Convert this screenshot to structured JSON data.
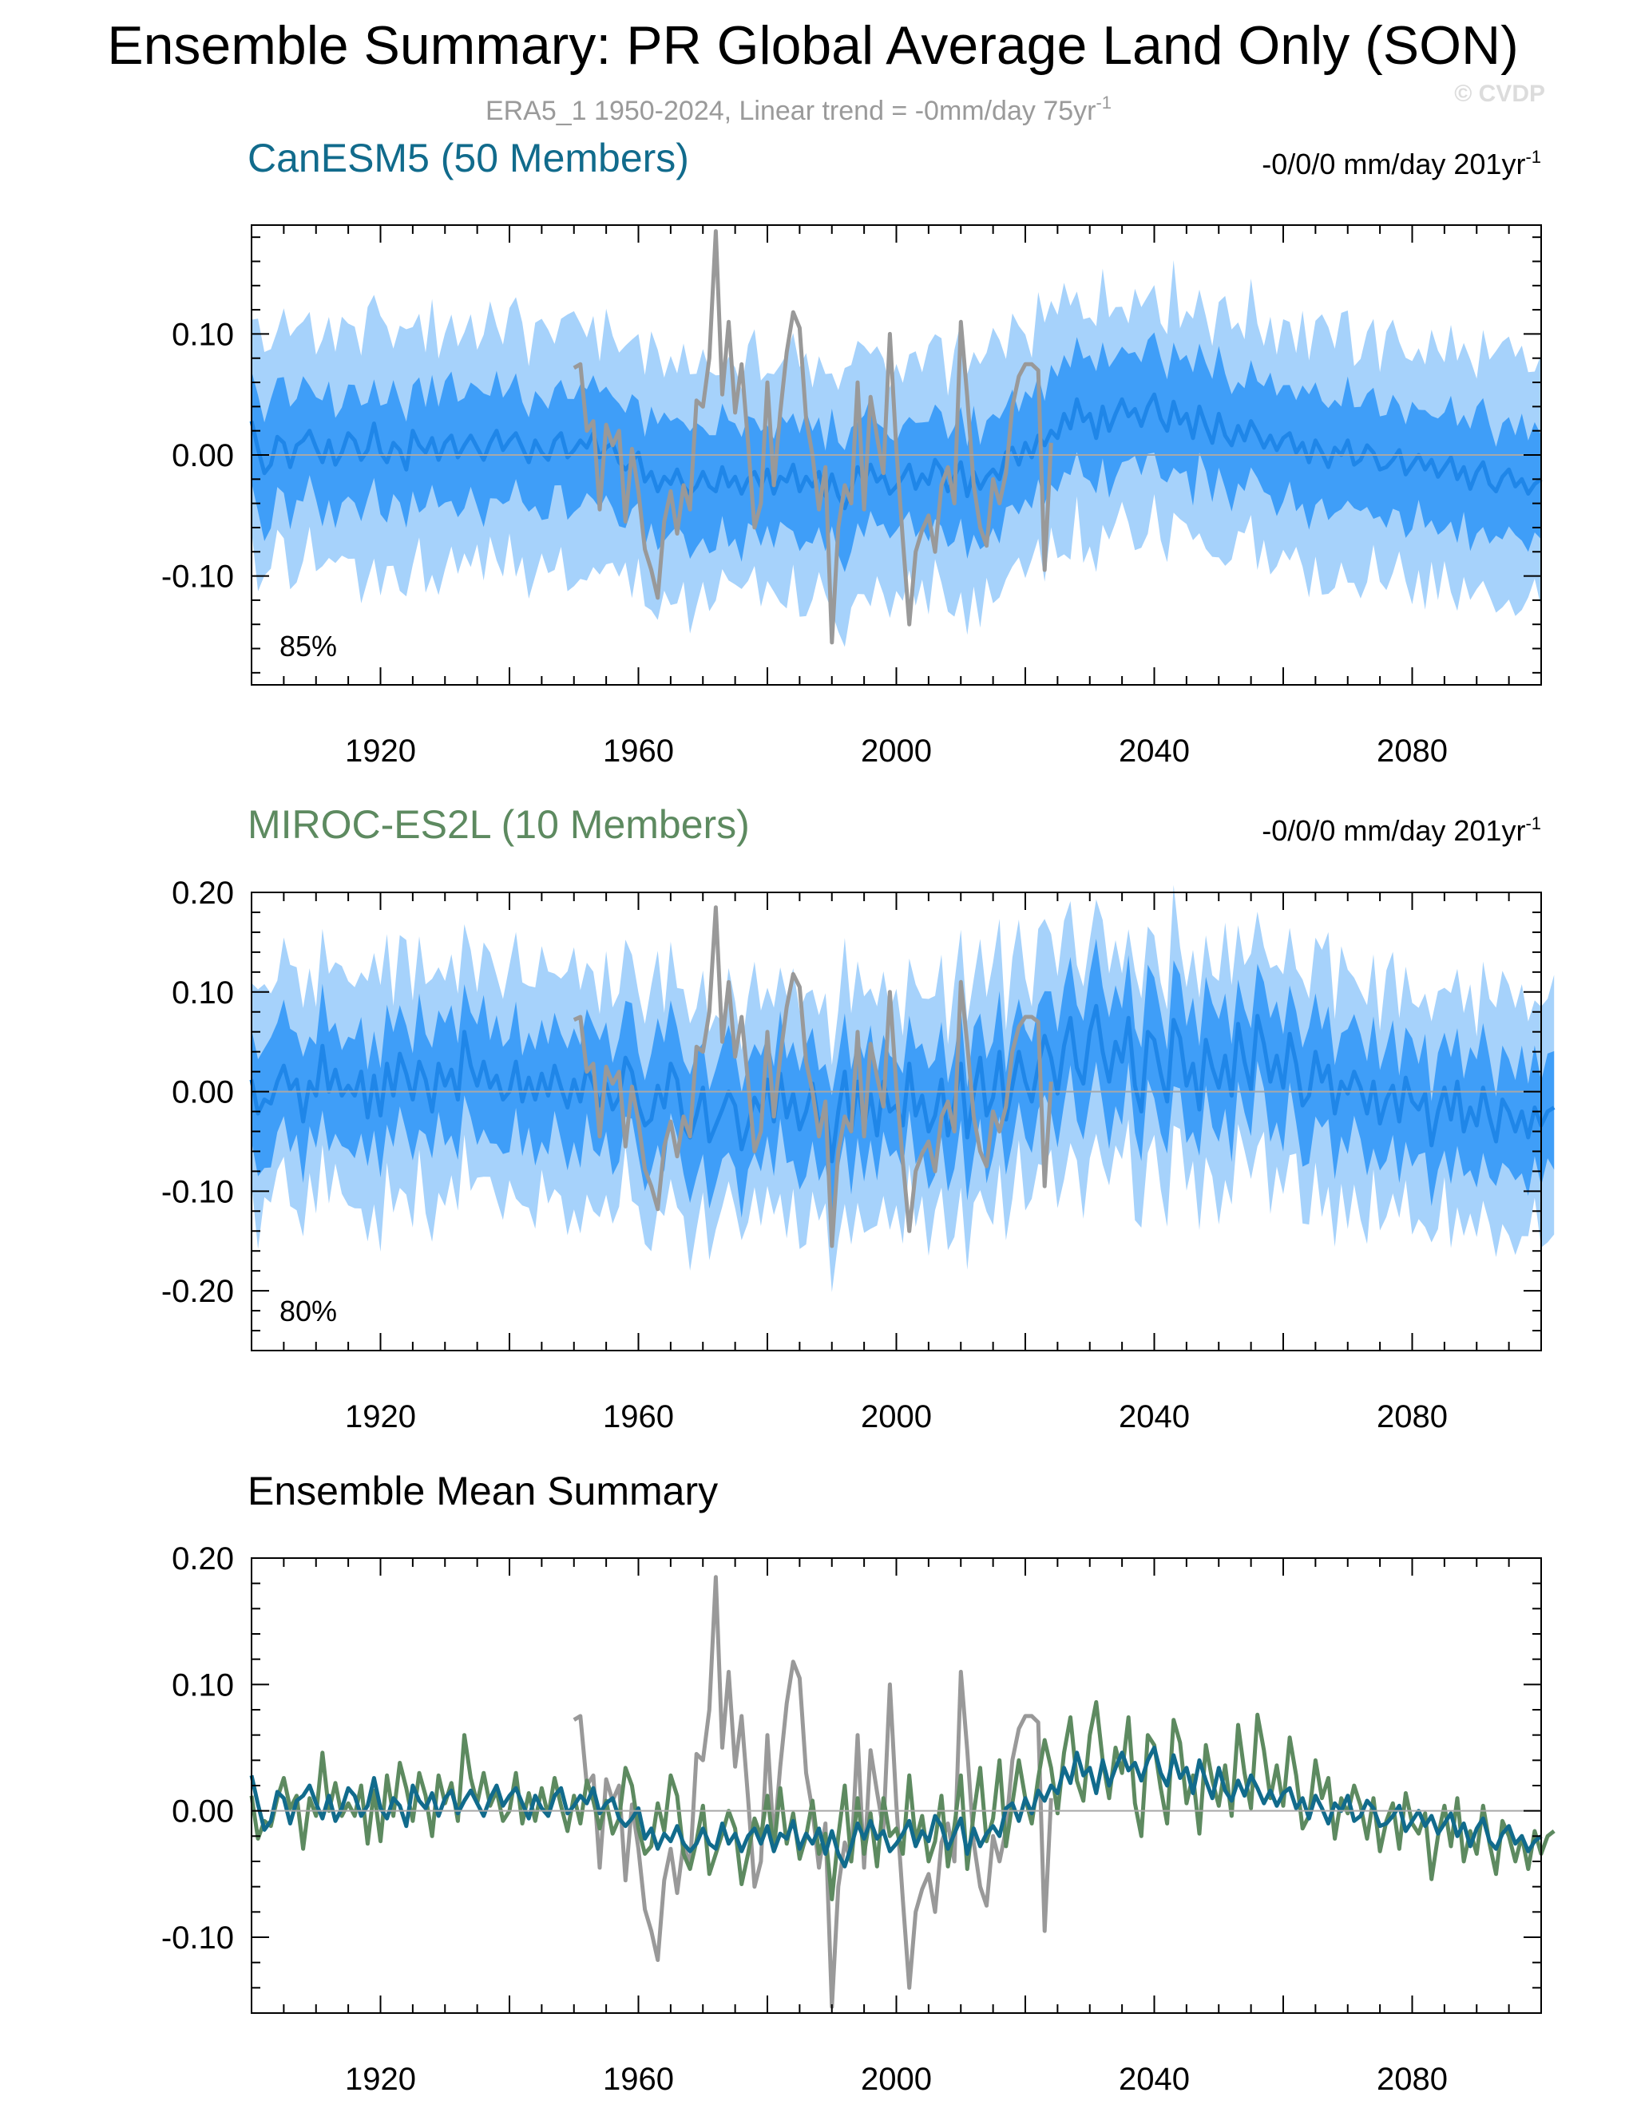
{
  "page": {
    "title": "Ensemble Summary: PR Global Average Land Only (SON)",
    "subtitle": "ERA5_1 1950-2024, Linear trend = -0mm/day 75yr",
    "subtitle_sup": "-1",
    "watermark": "© CVDP"
  },
  "colors": {
    "band_outer": "#a6d2fb",
    "band_inner": "#3f9ef8",
    "mean_line": "#1f86e8",
    "obs_line": "#999999",
    "zero_line": "#a8a8a8",
    "canesm5": "#116b8c",
    "miroc": "#5d8a60"
  },
  "chart_data": [
    {
      "type": "area",
      "model": "CanESM5",
      "title": "CanESM5 (50 Members)",
      "trend_label": "-0/0/0 mm/day 201yr",
      "trend_sup": "-1",
      "percent_label": "85%",
      "xlim": [
        1900,
        2100
      ],
      "ylim": [
        -0.19,
        0.19
      ],
      "xticks": [
        1920,
        1960,
        2000,
        2040,
        2080
      ],
      "xtick_labels": [
        "1920",
        "1960",
        "2000",
        "2040",
        "2080"
      ],
      "yticks": [
        -0.1,
        0.0,
        0.1
      ],
      "ytick_labels": [
        "-0.10",
        "0.00",
        "0.10"
      ],
      "band_outer_halfwidth": 0.095,
      "band_inner_halfwidth": 0.045,
      "series": [
        {
          "name": "ensemble-mean",
          "x_start": 1900,
          "values": [
            0.028,
            0.005,
            -0.015,
            -0.008,
            0.015,
            0.01,
            -0.01,
            0.008,
            0.012,
            0.02,
            0.006,
            -0.006,
            0.012,
            -0.008,
            0.002,
            0.018,
            0.012,
            -0.004,
            0.004,
            0.026,
            0.002,
            -0.006,
            0.01,
            0.004,
            -0.012,
            0.02,
            0.008,
            0.002,
            0.014,
            -0.004,
            0.01,
            0.016,
            -0.002,
            0.008,
            0.016,
            0.006,
            -0.004,
            0.01,
            0.02,
            0.004,
            0.012,
            0.018,
            0.006,
            -0.006,
            0.012,
            0.002,
            -0.004,
            0.012,
            0.018,
            -0.002,
            0.004,
            0.012,
            0.006,
            0.018,
            -0.002,
            0.006,
            0.01,
            -0.006,
            -0.012,
            -0.006,
            0.002,
            -0.022,
            -0.014,
            -0.03,
            -0.018,
            -0.024,
            -0.012,
            -0.026,
            -0.032,
            -0.026,
            -0.014,
            -0.026,
            -0.03,
            -0.01,
            -0.026,
            -0.018,
            -0.032,
            -0.02,
            -0.014,
            -0.026,
            -0.012,
            -0.032,
            -0.018,
            -0.022,
            -0.008,
            -0.03,
            -0.018,
            -0.026,
            -0.014,
            -0.034,
            -0.016,
            -0.034,
            -0.044,
            -0.028,
            -0.01,
            -0.022,
            -0.008,
            -0.022,
            -0.016,
            -0.032,
            -0.026,
            -0.018,
            -0.008,
            -0.028,
            -0.016,
            -0.024,
            -0.004,
            -0.012,
            -0.03,
            -0.018,
            -0.006,
            -0.034,
            -0.014,
            -0.028,
            -0.018,
            -0.012,
            -0.02,
            0.002,
            0.006,
            -0.008,
            0.01,
            -0.002,
            0.016,
            0.008,
            0.02,
            0.014,
            0.034,
            0.022,
            0.046,
            0.028,
            0.034,
            0.014,
            0.04,
            0.02,
            0.034,
            0.046,
            0.032,
            0.038,
            0.024,
            0.04,
            0.05,
            0.03,
            0.02,
            0.044,
            0.026,
            0.034,
            0.014,
            0.04,
            0.024,
            0.01,
            0.034,
            0.016,
            0.008,
            0.024,
            0.012,
            0.028,
            0.018,
            0.006,
            0.016,
            0.004,
            0.014,
            0.018,
            0.002,
            0.01,
            -0.006,
            0.012,
            0.002,
            -0.01,
            0.006,
            0.0,
            0.012,
            -0.008,
            -0.004,
            0.008,
            0.002,
            -0.012,
            -0.01,
            -0.004,
            0.004,
            -0.016,
            -0.008,
            0.0,
            -0.012,
            -0.004,
            -0.018,
            -0.01,
            -0.002,
            -0.02,
            -0.01,
            -0.028,
            -0.014,
            -0.006,
            -0.024,
            -0.03,
            -0.018,
            -0.012,
            -0.026,
            -0.02,
            -0.032,
            -0.024,
            -0.02
          ]
        },
        {
          "name": "ERA5_1",
          "x_start": 1950,
          "values": [
            0.072,
            0.075,
            0.02,
            0.028,
            -0.045,
            0.025,
            0.008,
            0.02,
            -0.055,
            0.005,
            -0.03,
            -0.078,
            -0.095,
            -0.118,
            -0.055,
            -0.03,
            -0.065,
            -0.025,
            -0.045,
            0.045,
            0.04,
            0.08,
            0.185,
            0.05,
            0.11,
            0.035,
            0.075,
            0.01,
            -0.06,
            -0.04,
            0.06,
            -0.025,
            0.035,
            0.085,
            0.118,
            0.105,
            0.03,
            0.0,
            -0.045,
            -0.01,
            -0.155,
            -0.06,
            -0.025,
            -0.04,
            0.06,
            -0.045,
            0.048,
            0.015,
            -0.015,
            0.1,
            0.005,
            -0.07,
            -0.14,
            -0.08,
            -0.062,
            -0.05,
            -0.08,
            -0.025,
            -0.01,
            -0.04,
            0.11,
            0.048,
            -0.025,
            -0.06,
            -0.075,
            -0.02,
            -0.04,
            -0.015,
            0.04,
            0.065,
            0.075,
            0.075,
            0.07,
            -0.095,
            0.01
          ]
        }
      ]
    },
    {
      "type": "area",
      "model": "MIROC-ES2L",
      "title": "MIROC-ES2L (10 Members)",
      "trend_label": "-0/0/0 mm/day 201yr",
      "trend_sup": "-1",
      "percent_label": "80%",
      "xlim": [
        1900,
        2100
      ],
      "ylim": [
        -0.26,
        0.2
      ],
      "xticks": [
        1920,
        1960,
        2000,
        2040,
        2080
      ],
      "xtick_labels": [
        "1920",
        "1960",
        "2000",
        "2040",
        "2080"
      ],
      "yticks": [
        -0.2,
        -0.1,
        0.0,
        0.1,
        0.2
      ],
      "ytick_labels": [
        "-0.20",
        "-0.10",
        "0.00",
        "0.10",
        "0.20"
      ],
      "band_outer_halfwidth": 0.11,
      "band_inner_halfwidth": 0.055,
      "series": [
        {
          "name": "ensemble-mean",
          "x_start": 1900,
          "values": [
            0.012,
            -0.022,
            -0.008,
            -0.012,
            0.01,
            0.026,
            0.002,
            0.012,
            -0.03,
            0.01,
            -0.004,
            0.046,
            0.0,
            0.022,
            -0.004,
            0.006,
            -0.004,
            0.02,
            -0.026,
            0.016,
            -0.024,
            0.028,
            -0.004,
            0.038,
            0.018,
            -0.008,
            0.03,
            0.012,
            -0.02,
            0.028,
            0.006,
            0.022,
            -0.008,
            0.06,
            0.026,
            0.006,
            0.03,
            0.004,
            0.016,
            -0.008,
            0.0,
            0.03,
            -0.01,
            0.014,
            -0.008,
            0.018,
            -0.004,
            0.026,
            0.004,
            -0.016,
            0.012,
            -0.01,
            0.024,
            0.008,
            -0.014,
            0.008,
            -0.018,
            -0.006,
            0.034,
            0.02,
            -0.014,
            -0.034,
            -0.028,
            0.006,
            -0.016,
            0.028,
            0.012,
            -0.034,
            -0.046,
            -0.024,
            0.004,
            -0.05,
            -0.034,
            -0.018,
            0.0,
            -0.014,
            -0.058,
            -0.034,
            -0.006,
            -0.02,
            0.012,
            -0.03,
            0.018,
            -0.026,
            -0.002,
            -0.038,
            -0.02,
            0.008,
            -0.034,
            -0.018,
            -0.07,
            -0.02,
            0.02,
            -0.04,
            0.01,
            -0.034,
            -0.002,
            -0.044,
            0.01,
            -0.02,
            -0.014,
            -0.034,
            0.028,
            -0.024,
            -0.004,
            -0.04,
            -0.024,
            0.012,
            -0.044,
            -0.012,
            0.028,
            -0.046,
            -0.002,
            0.034,
            -0.024,
            -0.006,
            0.04,
            -0.028,
            0.006,
            0.04,
            0.01,
            -0.01,
            0.026,
            0.056,
            0.034,
            -0.002,
            0.046,
            0.074,
            0.024,
            0.008,
            0.06,
            0.086,
            0.04,
            0.01,
            0.05,
            0.03,
            0.074,
            0.006,
            -0.02,
            0.06,
            0.052,
            0.018,
            -0.01,
            0.072,
            0.054,
            0.006,
            0.028,
            -0.018,
            0.052,
            0.024,
            0.004,
            0.036,
            -0.004,
            0.068,
            0.03,
            0.002,
            0.076,
            0.048,
            0.01,
            0.036,
            0.004,
            0.058,
            0.028,
            -0.014,
            -0.004,
            0.04,
            0.01,
            0.026,
            -0.022,
            0.01,
            -0.002,
            0.02,
            0.004,
            -0.022,
            0.01,
            -0.032,
            -0.008,
            0.006,
            -0.03,
            0.014,
            -0.01,
            -0.018,
            -0.002,
            -0.054,
            -0.02,
            0.004,
            -0.028,
            0.01,
            -0.04,
            -0.016,
            -0.034,
            0.004,
            -0.026,
            -0.05,
            -0.008,
            -0.02,
            -0.04,
            -0.02,
            -0.046,
            -0.016,
            -0.034,
            -0.02,
            -0.016
          ]
        },
        {
          "name": "ERA5_1",
          "x_start": 1950,
          "values": [
            0.072,
            0.075,
            0.02,
            0.028,
            -0.045,
            0.025,
            0.008,
            0.02,
            -0.055,
            0.005,
            -0.03,
            -0.078,
            -0.095,
            -0.118,
            -0.055,
            -0.03,
            -0.065,
            -0.025,
            -0.045,
            0.045,
            0.04,
            0.08,
            0.185,
            0.05,
            0.11,
            0.035,
            0.075,
            0.01,
            -0.06,
            -0.04,
            0.06,
            -0.025,
            0.035,
            0.085,
            0.118,
            0.105,
            0.03,
            0.0,
            -0.045,
            -0.01,
            -0.155,
            -0.06,
            -0.025,
            -0.04,
            0.06,
            -0.045,
            0.048,
            0.015,
            -0.015,
            0.1,
            0.005,
            -0.07,
            -0.14,
            -0.08,
            -0.062,
            -0.05,
            -0.08,
            -0.025,
            -0.01,
            -0.04,
            0.11,
            0.048,
            -0.025,
            -0.06,
            -0.075,
            -0.02,
            -0.04,
            -0.015,
            0.04,
            0.065,
            0.075,
            0.075,
            0.07,
            -0.095,
            0.01
          ]
        }
      ]
    },
    {
      "type": "line",
      "model": "Ensemble Mean Summary",
      "title": "Ensemble Mean Summary",
      "xlim": [
        1900,
        2100
      ],
      "ylim": [
        -0.16,
        0.2
      ],
      "xticks": [
        1920,
        1960,
        2000,
        2040,
        2080
      ],
      "xtick_labels": [
        "1920",
        "1960",
        "2000",
        "2040",
        "2080"
      ],
      "yticks": [
        -0.1,
        0.0,
        0.1,
        0.2
      ],
      "ytick_labels": [
        "-0.10",
        "0.00",
        "0.10",
        "0.20"
      ],
      "series": [
        {
          "name": "ERA5_1",
          "color_key": "obs_line"
        },
        {
          "name": "MIROC-ES2L",
          "color_key": "miroc"
        },
        {
          "name": "CanESM5",
          "color_key": "canesm5"
        }
      ]
    }
  ]
}
